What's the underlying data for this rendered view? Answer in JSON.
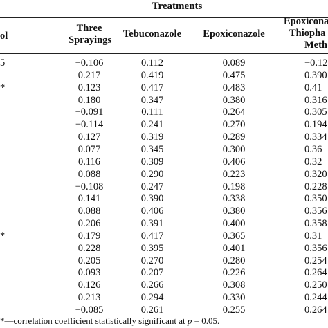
{
  "table": {
    "group_header": "Treatments",
    "columns": [
      {
        "key": "control",
        "lines": [
          "ol"
        ]
      },
      {
        "key": "three_sprayings",
        "lines": [
          "Three",
          "Sprayings"
        ]
      },
      {
        "key": "tebuconazole",
        "lines": [
          "Tebuconazole"
        ]
      },
      {
        "key": "epoxiconazole",
        "lines": [
          "Epoxiconazole"
        ]
      },
      {
        "key": "epoxiconazole_thiophanate",
        "lines": [
          "Epoxicona",
          "Thiopha",
          "Meth"
        ]
      }
    ],
    "rows": [
      {
        "label": "5",
        "values": [
          "−0.106",
          "0.112",
          "0.089",
          "−0.12"
        ]
      },
      {
        "label": "",
        "values": [
          "0.217",
          "0.419",
          "0.475",
          "0.390"
        ]
      },
      {
        "label": "*",
        "values": [
          "0.123",
          "0.417",
          "0.483",
          "0.41"
        ]
      },
      {
        "label": "",
        "values": [
          "0.180",
          "0.347",
          "0.380",
          "0.316"
        ]
      },
      {
        "label": "",
        "values": [
          "−0.091",
          "0.111",
          "0.264",
          "0.305"
        ]
      },
      {
        "label": "",
        "values": [
          "−0.114",
          "0.241",
          "0.270",
          "0.194"
        ]
      },
      {
        "label": "",
        "values": [
          "0.127",
          "0.319",
          "0.289",
          "0.334"
        ]
      },
      {
        "label": "",
        "values": [
          "0.077",
          "0.345",
          "0.300",
          "0.36"
        ]
      },
      {
        "label": "",
        "values": [
          "0.116",
          "0.309",
          "0.406",
          "0.32"
        ]
      },
      {
        "label": "",
        "values": [
          "0.088",
          "0.290",
          "0.223",
          "0.320"
        ]
      },
      {
        "label": "",
        "values": [
          "−0.108",
          "0.247",
          "0.198",
          "0.228"
        ]
      },
      {
        "label": "",
        "values": [
          "0.141",
          "0.390",
          "0.338",
          "0.350"
        ]
      },
      {
        "label": "",
        "values": [
          "0.088",
          "0.406",
          "0.380",
          "0.356"
        ]
      },
      {
        "label": "",
        "values": [
          "0.206",
          "0.391",
          "0.400",
          "0.358"
        ]
      },
      {
        "label": "*",
        "values": [
          "0.179",
          "0.417",
          "0.365",
          "0.31"
        ]
      },
      {
        "label": "",
        "values": [
          "0.228",
          "0.395",
          "0.401",
          "0.356"
        ]
      },
      {
        "label": "",
        "values": [
          "0.205",
          "0.270",
          "0.280",
          "0.254"
        ]
      },
      {
        "label": "",
        "values": [
          "0.093",
          "0.207",
          "0.226",
          "0.264"
        ]
      },
      {
        "label": "",
        "values": [
          "0.126",
          "0.266",
          "0.308",
          "0.250"
        ]
      },
      {
        "label": "",
        "values": [
          "0.213",
          "0.294",
          "0.330",
          "0.244"
        ]
      },
      {
        "label": "",
        "values": [
          "−0.085",
          "0.261",
          "0.255",
          "0.264"
        ]
      }
    ]
  },
  "footnote": {
    "text": "*—correlation coefficient statistically significant at ",
    "variable": "p",
    "tail": " = 0.05."
  }
}
